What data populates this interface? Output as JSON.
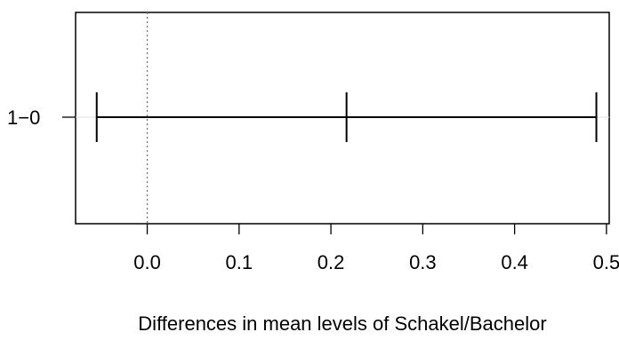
{
  "chart_data": {
    "type": "errorbar",
    "title": "",
    "xlabel": "Differences in mean levels of Schakel/Bachelor",
    "ylabel": "",
    "xlim": [
      -0.078,
      0.503
    ],
    "xticks": [
      0.0,
      0.1,
      0.2,
      0.3,
      0.4,
      0.5
    ],
    "xtick_labels": [
      "0.0",
      "0.1",
      "0.2",
      "0.3",
      "0.4",
      "0.5"
    ],
    "reference_line": {
      "x": 0.0,
      "style": "dotted"
    },
    "grid": false,
    "intervals": [
      {
        "label": "1−0",
        "estimate": 0.217,
        "lower": -0.055,
        "upper": 0.489
      }
    ]
  }
}
